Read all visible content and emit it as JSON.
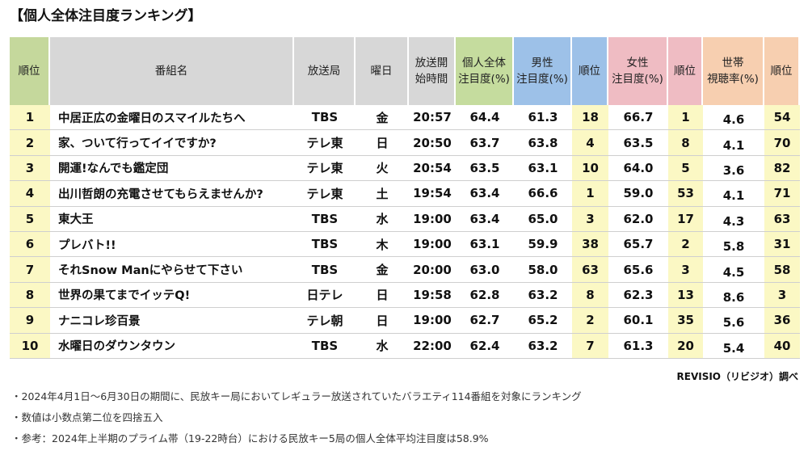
{
  "title": "【個人全体注目度ランキング】",
  "headers": {
    "rank": "順位",
    "program": "番組名",
    "station": "放送局",
    "day": "曜日",
    "start_1": "放送開",
    "start_2": "始時間",
    "ind_1": "個人全体",
    "ind_2": "注目度(%)",
    "male_1": "男性",
    "male_2": "注目度(%)",
    "male_rank": "順位",
    "female_1": "女性",
    "female_2": "注目度(%)",
    "female_rank": "順位",
    "hh_1": "世帯",
    "hh_2": "視聴率(%)",
    "hh_rank": "順位"
  },
  "rows": [
    {
      "rank": "1",
      "program": "中居正広の金曜日のスマイルたちへ",
      "station": "TBS",
      "day": "金",
      "start": "20:57",
      "individual": "64.4",
      "male": "61.3",
      "male_rank": "18",
      "female": "66.7",
      "female_rank": "1",
      "household": "4.6",
      "hh_rank": "54"
    },
    {
      "rank": "2",
      "program": "家、ついて行ってイイですか?",
      "station": "テレ東",
      "day": "日",
      "start": "20:50",
      "individual": "63.7",
      "male": "63.8",
      "male_rank": "4",
      "female": "63.5",
      "female_rank": "8",
      "household": "4.1",
      "hh_rank": "70"
    },
    {
      "rank": "3",
      "program": "開運!なんでも鑑定団",
      "station": "テレ東",
      "day": "火",
      "start": "20:54",
      "individual": "63.5",
      "male": "63.1",
      "male_rank": "10",
      "female": "64.0",
      "female_rank": "5",
      "household": "3.6",
      "hh_rank": "82"
    },
    {
      "rank": "4",
      "program": "出川哲朗の充電させてもらえませんか?",
      "station": "テレ東",
      "day": "土",
      "start": "19:54",
      "individual": "63.4",
      "male": "66.6",
      "male_rank": "1",
      "female": "59.0",
      "female_rank": "53",
      "household": "4.1",
      "hh_rank": "71"
    },
    {
      "rank": "5",
      "program": "東大王",
      "station": "TBS",
      "day": "水",
      "start": "19:00",
      "individual": "63.4",
      "male": "65.0",
      "male_rank": "3",
      "female": "62.0",
      "female_rank": "17",
      "household": "4.3",
      "hh_rank": "63"
    },
    {
      "rank": "6",
      "program": "プレバト!!",
      "station": "TBS",
      "day": "木",
      "start": "19:00",
      "individual": "63.1",
      "male": "59.9",
      "male_rank": "38",
      "female": "65.7",
      "female_rank": "2",
      "household": "5.8",
      "hh_rank": "31"
    },
    {
      "rank": "7",
      "program": "それSnow Manにやらせて下さい",
      "station": "TBS",
      "day": "金",
      "start": "20:00",
      "individual": "63.0",
      "male": "58.0",
      "male_rank": "63",
      "female": "65.6",
      "female_rank": "3",
      "household": "4.5",
      "hh_rank": "58"
    },
    {
      "rank": "8",
      "program": "世界の果てまでイッテQ!",
      "station": "日テレ",
      "day": "日",
      "start": "19:58",
      "individual": "62.8",
      "male": "63.2",
      "male_rank": "8",
      "female": "62.3",
      "female_rank": "13",
      "household": "8.6",
      "hh_rank": "3"
    },
    {
      "rank": "9",
      "program": "ナニコレ珍百景",
      "station": "テレ朝",
      "day": "日",
      "start": "19:00",
      "individual": "62.7",
      "male": "65.2",
      "male_rank": "2",
      "female": "60.1",
      "female_rank": "35",
      "household": "5.6",
      "hh_rank": "36"
    },
    {
      "rank": "10",
      "program": "水曜日のダウンタウン",
      "station": "TBS",
      "day": "水",
      "start": "22:00",
      "individual": "62.4",
      "male": "63.2",
      "male_rank": "7",
      "female": "61.3",
      "female_rank": "20",
      "household": "5.4",
      "hh_rank": "40"
    }
  ],
  "source": "REVISIO（リビジオ）調べ",
  "notes": [
    "・2024年4月1日～6月30日の期間に、民放キー局においてレギュラー放送されていたバラエティ114番組を対象にランキング",
    "・数値は小数点第二位を四捨五入",
    "・参考：2024年上半期のプライム帯（19-22時台）における民放キー5局の個人全体平均注目度は58.9%"
  ]
}
